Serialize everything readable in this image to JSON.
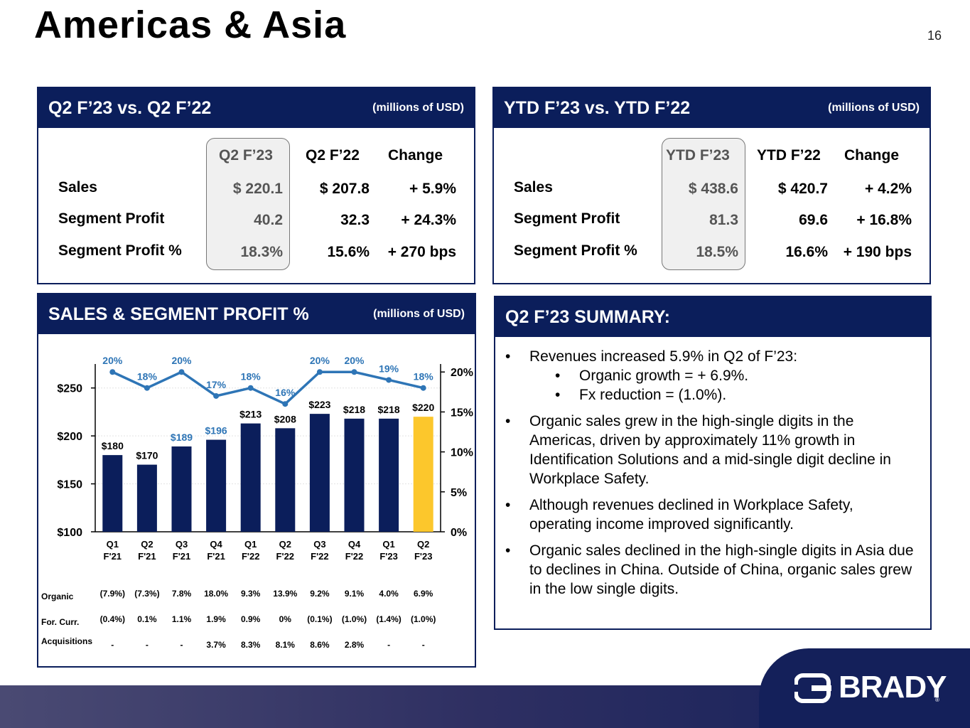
{
  "page": {
    "title": "Americas & Asia",
    "page_number": "16"
  },
  "q2_panel": {
    "title": "Q2 F’23 vs. Q2 F’22",
    "unit": "(millions of USD)",
    "columns": [
      "Q2 F’23",
      "Q2 F’22",
      "Change"
    ],
    "rows": [
      {
        "label": "Sales",
        "values": [
          "$ 220.1",
          "$ 207.8",
          "+ 5.9%"
        ]
      },
      {
        "label": "Segment Profit",
        "values": [
          "40.2",
          "32.3",
          "+ 24.3%"
        ]
      },
      {
        "label": "Segment Profit %",
        "values": [
          "18.3%",
          "15.6%",
          "+ 270 bps"
        ]
      }
    ]
  },
  "ytd_panel": {
    "title": "YTD F’23 vs. YTD F’22",
    "unit": "(millions of USD)",
    "columns": [
      "YTD F’23",
      "YTD F’22",
      "Change"
    ],
    "rows": [
      {
        "label": "Sales",
        "values": [
          "$ 438.6",
          "$ 420.7",
          "+ 4.2%"
        ]
      },
      {
        "label": "Segment Profit",
        "values": [
          "81.3",
          "69.6",
          "+ 16.8%"
        ]
      },
      {
        "label": "Segment Profit %",
        "values": [
          "18.5%",
          "16.6%",
          "+ 190 bps"
        ]
      }
    ]
  },
  "chart_panel": {
    "title": "SALES & SEGMENT PROFIT %",
    "unit": "(millions of USD)"
  },
  "chart_data": {
    "type": "bar",
    "categories": [
      "Q1 F'21",
      "Q2 F'21",
      "Q3 F'21",
      "Q4 F'21",
      "Q1 F'22",
      "Q2 F'22",
      "Q3 F'22",
      "Q4 F'22",
      "Q1 F'23",
      "Q2 F'23"
    ],
    "category_lines": [
      [
        "Q1",
        "F'21"
      ],
      [
        "Q2",
        "F'21"
      ],
      [
        "Q3",
        "F'21"
      ],
      [
        "Q4",
        "F'21"
      ],
      [
        "Q1",
        "F'22"
      ],
      [
        "Q2",
        "F'22"
      ],
      [
        "Q3",
        "F'22"
      ],
      [
        "Q4",
        "F'22"
      ],
      [
        "Q1",
        "F'23"
      ],
      [
        "Q2",
        "F'23"
      ]
    ],
    "series": [
      {
        "type": "bar",
        "values": [
          180,
          170,
          189,
          196,
          213,
          208,
          223,
          218,
          218,
          220
        ],
        "labels": [
          "$180",
          "$170",
          "$189",
          "$196",
          "$213",
          "$208",
          "$223",
          "$218",
          "$218",
          "$220"
        ]
      },
      {
        "type": "line",
        "axis": "right",
        "values": [
          20,
          18,
          20,
          17,
          18,
          16,
          20,
          20,
          19,
          18
        ],
        "labels": [
          "20%",
          "18%",
          "20%",
          "17%",
          "18%",
          "16%",
          "20%",
          "20%",
          "19%",
          "18%"
        ]
      }
    ],
    "y_left": {
      "range": [
        100,
        275
      ],
      "ticks": [
        100,
        150,
        200,
        250
      ],
      "tick_labels": [
        "$100",
        "$150",
        "$200",
        "$250"
      ]
    },
    "y_right": {
      "range": [
        0,
        21
      ],
      "ticks": [
        0,
        5,
        10,
        15,
        20
      ],
      "tick_labels": [
        "0%",
        "5%",
        "10%",
        "15%",
        "20%"
      ]
    },
    "colors": {
      "bar": "#0b1e5b",
      "highlight_bar": "#fcc72c",
      "line": "#2e75b6",
      "bar_label_highlight": "#2e75b6"
    },
    "highlight_index": 9,
    "gridlines": true,
    "legend": "none"
  },
  "growth_table": {
    "rows": [
      {
        "label": "Organic",
        "values": [
          "(7.9%)",
          "(7.3%)",
          "7.8%",
          "18.0%",
          "9.3%",
          "13.9%",
          "9.2%",
          "9.1%",
          "4.0%",
          "6.9%"
        ]
      },
      {
        "label": "For. Curr.",
        "values": [
          "(0.4%)",
          "0.1%",
          "1.1%",
          "1.9%",
          "0.9%",
          "0%",
          "(0.1%)",
          "(1.0%)",
          "(1.4%)",
          "(1.0%)"
        ]
      },
      {
        "label": "Acquisitions",
        "values": [
          "-",
          "-",
          "-",
          "3.7%",
          "8.3%",
          "8.1%",
          "8.6%",
          "2.8%",
          "-",
          "-"
        ]
      }
    ]
  },
  "summary": {
    "title": "Q2 F’23 SUMMARY:",
    "bullet": "•",
    "items": [
      {
        "text": "Revenues increased 5.9% in Q2 of F’23:",
        "sub": [
          "Organic growth = + 6.9%.",
          "Fx reduction = (1.0%)."
        ]
      },
      {
        "text": "Organic sales grew in the high-single digits in the Americas, driven by approximately 11% growth in Identification Solutions and a mid-single digit decline in Workplace Safety."
      },
      {
        "text": "Although revenues declined in Workplace Safety, operating income improved significantly."
      },
      {
        "text": "Organic sales declined in the high-single digits in Asia due to declines in China.  Outside of China, organic sales grew in the low single digits."
      }
    ]
  },
  "brand": {
    "name": "BRADY",
    "registered": "®"
  }
}
